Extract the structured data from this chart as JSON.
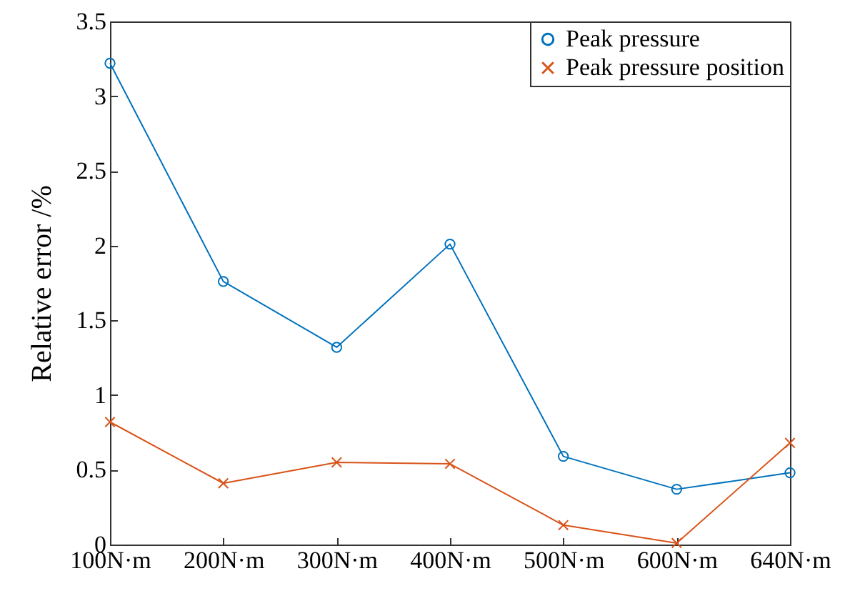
{
  "chart_data": {
    "type": "line",
    "ylabel": "Relative error /%",
    "categories": [
      "100N·m",
      "200N·m",
      "300N·m",
      "400N·m",
      "500N·m",
      "600N·m",
      "640N·m"
    ],
    "series": [
      {
        "name": "Peak pressure",
        "color": "#0072bd",
        "marker": "circle",
        "values": [
          3.22,
          1.76,
          1.32,
          2.01,
          0.59,
          0.37,
          0.48
        ]
      },
      {
        "name": "Peak pressure position",
        "color": "#d95319",
        "marker": "cross",
        "values": [
          0.82,
          0.41,
          0.55,
          0.54,
          0.13,
          0.01,
          0.68
        ]
      }
    ],
    "ylim": [
      0,
      3.5
    ],
    "yticks": [
      0,
      0.5,
      1,
      1.5,
      2,
      2.5,
      3,
      3.5
    ],
    "grid": false,
    "legend": "top right",
    "line_style": "solid"
  }
}
